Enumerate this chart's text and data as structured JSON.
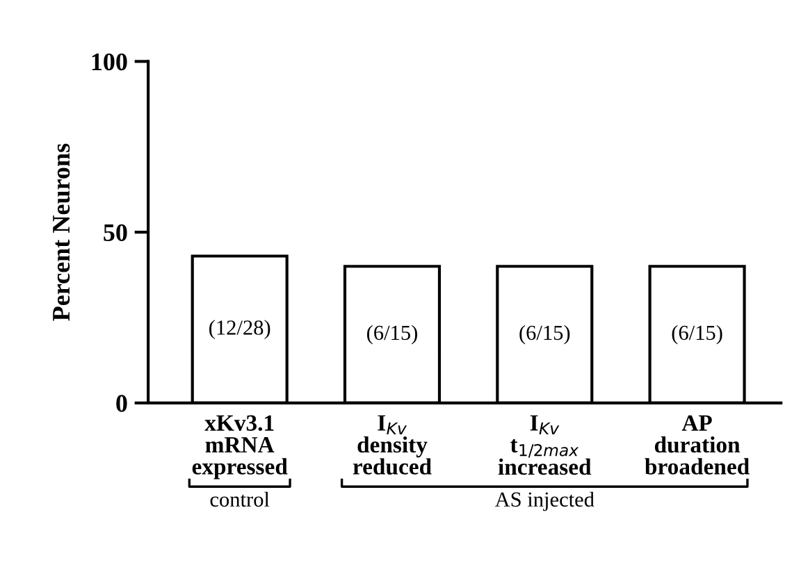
{
  "chart_data": {
    "type": "bar",
    "ylabel": "Percent Neurons",
    "categories": [
      "xKv3.1\nmRNA\nexpressed",
      "I$_{Kv}$\ndensity\nreduced",
      "I$_{Kv}$\nt$_{1/2max}$\nincreased",
      "AP\nduration\nbroadened"
    ],
    "values": [
      43,
      40,
      40,
      40
    ],
    "value_labels": [
      "(12/28)",
      "(6/15)",
      "(6/15)",
      "(6/15)"
    ],
    "color": "#ffffff",
    "ylim": [
      0,
      100
    ],
    "yticks": [
      0,
      50,
      100
    ],
    "grid": false,
    "annotations": [
      "control",
      "AS injected"
    ]
  }
}
